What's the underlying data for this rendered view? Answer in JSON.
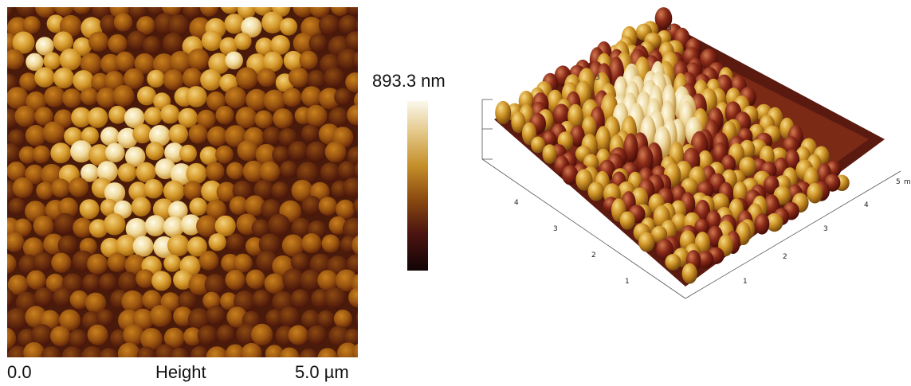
{
  "afm_2d": {
    "start_label": "0.0",
    "channel_label": "Height",
    "end_label": "5.0 µm"
  },
  "colorbar": {
    "max_label": "893.3 nm",
    "colors": [
      "#120406",
      "#4c1410",
      "#8a4a10",
      "#c58f2a",
      "#e4c98a",
      "#fbf8ec"
    ]
  },
  "afm_3d": {
    "left_axis_ticks": [
      "1",
      "2",
      "3",
      "4"
    ],
    "right_axis_ticks": [
      "1",
      "2",
      "3",
      "4",
      "5"
    ],
    "right_axis_unit": "m",
    "back_tick": "5",
    "left_back_tick": "3"
  }
}
